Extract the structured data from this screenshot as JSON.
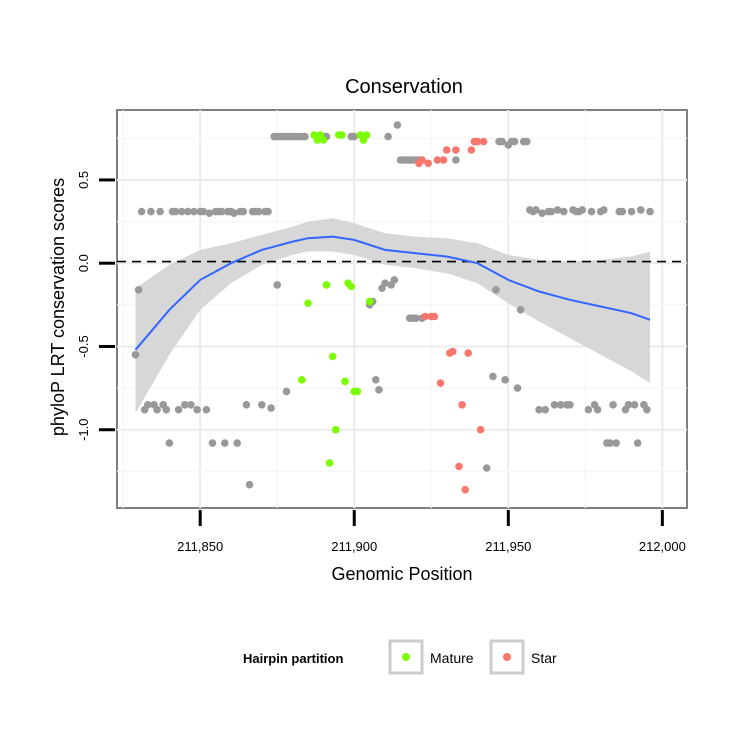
{
  "chart_data": {
    "type": "scatter",
    "title": "Conservation",
    "xlabel": "Genomic Position",
    "ylabel": "phyloP LRT conservation scores",
    "xlim": [
      211823,
      212008
    ],
    "ylim": [
      -1.47,
      0.92
    ],
    "x_ticks": [
      211850,
      211900,
      211950,
      212000
    ],
    "x_tick_labels": [
      "211,850",
      "211,900",
      "211,950",
      "212,000"
    ],
    "y_ticks": [
      0.5,
      0.0,
      -0.5,
      -1.0
    ],
    "y_tick_labels": [
      "0.5",
      "0.0",
      "-0.5",
      "-1.0"
    ],
    "reference_line": {
      "y": 0.01,
      "style": "dashed"
    },
    "grid": true,
    "legend": {
      "title": "Hairpin partition",
      "position": "bottom",
      "entries": [
        {
          "label": "Mature",
          "color": "#7CFC00"
        },
        {
          "label": "Star",
          "color": "#F8766D"
        }
      ]
    },
    "colors": {
      "other": "#999999",
      "mature": "#7CFC00",
      "star": "#F8766D",
      "smooth": "#3366FF",
      "band": "#d3d3d3"
    },
    "series": [
      {
        "name": "Other",
        "points": [
          [
            211829,
            -0.55
          ],
          [
            211830,
            -0.16
          ],
          [
            211831,
            0.31
          ],
          [
            211832,
            -0.88
          ],
          [
            211833,
            -0.85
          ],
          [
            211834,
            0.31
          ],
          [
            211835,
            -0.85
          ],
          [
            211836,
            -0.88
          ],
          [
            211837,
            0.31
          ],
          [
            211838,
            -0.85
          ],
          [
            211839,
            -0.88
          ],
          [
            211840,
            -1.08
          ],
          [
            211841,
            0.31
          ],
          [
            211842,
            0.31
          ],
          [
            211843,
            -0.88
          ],
          [
            211844,
            0.31
          ],
          [
            211845,
            -0.85
          ],
          [
            211846,
            0.31
          ],
          [
            211847,
            -0.85
          ],
          [
            211848,
            0.31
          ],
          [
            211849,
            -0.88
          ],
          [
            211850,
            0.31
          ],
          [
            211851,
            0.31
          ],
          [
            211852,
            -0.88
          ],
          [
            211853,
            0.3
          ],
          [
            211854,
            -1.08
          ],
          [
            211855,
            0.31
          ],
          [
            211856,
            0.31
          ],
          [
            211857,
            0.31
          ],
          [
            211858,
            -1.08
          ],
          [
            211859,
            0.31
          ],
          [
            211860,
            0.31
          ],
          [
            211861,
            0.3
          ],
          [
            211862,
            -1.08
          ],
          [
            211863,
            0.31
          ],
          [
            211864,
            0.31
          ],
          [
            211865,
            -0.85
          ],
          [
            211866,
            -1.33
          ],
          [
            211867,
            0.31
          ],
          [
            211868,
            0.31
          ],
          [
            211869,
            0.31
          ],
          [
            211870,
            -0.85
          ],
          [
            211871,
            0.31
          ],
          [
            211872,
            0.31
          ],
          [
            211873,
            -0.87
          ],
          [
            211874,
            0.76
          ],
          [
            211875,
            0.76
          ],
          [
            211876,
            0.76
          ],
          [
            211877,
            0.76
          ],
          [
            211878,
            0.76
          ],
          [
            211879,
            0.76
          ],
          [
            211880,
            0.76
          ],
          [
            211881,
            0.76
          ],
          [
            211882,
            0.76
          ],
          [
            211883,
            0.76
          ],
          [
            211884,
            0.76
          ],
          [
            211875,
            -0.13
          ],
          [
            211878,
            -0.77
          ],
          [
            211889,
            0.76
          ],
          [
            211890,
            0.76
          ],
          [
            211891,
            0.76
          ],
          [
            211899,
            0.76
          ],
          [
            211900,
            0.76
          ],
          [
            211905,
            -0.25
          ],
          [
            211906,
            -0.23
          ],
          [
            211907,
            -0.7
          ],
          [
            211908,
            -0.76
          ],
          [
            211909,
            -0.15
          ],
          [
            211910,
            -0.12
          ],
          [
            211911,
            0.76
          ],
          [
            211912,
            -0.13
          ],
          [
            211913,
            -0.1
          ],
          [
            211914,
            0.83
          ],
          [
            211915,
            0.62
          ],
          [
            211916,
            0.62
          ],
          [
            211917,
            0.62
          ],
          [
            211918,
            0.62
          ],
          [
            211919,
            0.62
          ],
          [
            211920,
            0.62
          ],
          [
            211921,
            0.62
          ],
          [
            211922,
            0.62
          ],
          [
            211918,
            -0.33
          ],
          [
            211919,
            -0.33
          ],
          [
            211920,
            -0.33
          ],
          [
            211922,
            -0.33
          ],
          [
            211933,
            0.62
          ],
          [
            211943,
            -1.23
          ],
          [
            211945,
            -0.68
          ],
          [
            211946,
            -0.16
          ],
          [
            211947,
            0.73
          ],
          [
            211948,
            0.73
          ],
          [
            211949,
            -0.7
          ],
          [
            211950,
            0.71
          ],
          [
            211951,
            0.73
          ],
          [
            211952,
            0.73
          ],
          [
            211953,
            -0.75
          ],
          [
            211954,
            -0.28
          ],
          [
            211955,
            0.73
          ],
          [
            211956,
            0.73
          ],
          [
            211957,
            0.32
          ],
          [
            211958,
            0.31
          ],
          [
            211959,
            0.32
          ],
          [
            211960,
            -0.88
          ],
          [
            211961,
            0.3
          ],
          [
            211962,
            -0.88
          ],
          [
            211963,
            0.31
          ],
          [
            211964,
            0.31
          ],
          [
            211965,
            -0.85
          ],
          [
            211966,
            0.32
          ],
          [
            211967,
            -0.85
          ],
          [
            211968,
            0.31
          ],
          [
            211969,
            -0.85
          ],
          [
            211970,
            -0.85
          ],
          [
            211971,
            0.32
          ],
          [
            211972,
            0.31
          ],
          [
            211973,
            0.31
          ],
          [
            211974,
            0.32
          ],
          [
            211976,
            -0.88
          ],
          [
            211977,
            0.31
          ],
          [
            211978,
            -0.85
          ],
          [
            211979,
            -0.88
          ],
          [
            211980,
            0.31
          ],
          [
            211981,
            0.32
          ],
          [
            211982,
            -1.08
          ],
          [
            211983,
            -1.08
          ],
          [
            211984,
            -0.85
          ],
          [
            211985,
            -1.08
          ],
          [
            211986,
            0.31
          ],
          [
            211987,
            0.31
          ],
          [
            211988,
            -0.88
          ],
          [
            211989,
            -0.85
          ],
          [
            211990,
            0.31
          ],
          [
            211991,
            -0.85
          ],
          [
            211992,
            -1.08
          ],
          [
            211993,
            0.32
          ],
          [
            211994,
            -0.85
          ],
          [
            211995,
            -0.88
          ],
          [
            211996,
            0.31
          ]
        ]
      },
      {
        "name": "Mature",
        "points": [
          [
            211883,
            -0.7
          ],
          [
            211885,
            -0.24
          ],
          [
            211887,
            0.77
          ],
          [
            211888,
            0.74
          ],
          [
            211889,
            0.77
          ],
          [
            211890,
            0.74
          ],
          [
            211891,
            -0.13
          ],
          [
            211892,
            -1.2
          ],
          [
            211893,
            -0.56
          ],
          [
            211894,
            -1.0
          ],
          [
            211895,
            0.77
          ],
          [
            211896,
            0.77
          ],
          [
            211897,
            -0.71
          ],
          [
            211898,
            -0.12
          ],
          [
            211899,
            -0.14
          ],
          [
            211900,
            -0.77
          ],
          [
            211901,
            -0.77
          ],
          [
            211902,
            0.77
          ],
          [
            211903,
            0.74
          ],
          [
            211904,
            0.77
          ],
          [
            211905,
            -0.23
          ]
        ]
      },
      {
        "name": "Star",
        "points": [
          [
            211921,
            0.6
          ],
          [
            211922,
            0.62
          ],
          [
            211923,
            -0.32
          ],
          [
            211924,
            0.6
          ],
          [
            211925,
            -0.32
          ],
          [
            211926,
            -0.32
          ],
          [
            211927,
            0.62
          ],
          [
            211928,
            -0.72
          ],
          [
            211929,
            0.62
          ],
          [
            211930,
            0.68
          ],
          [
            211931,
            -0.54
          ],
          [
            211932,
            -0.53
          ],
          [
            211933,
            0.68
          ],
          [
            211934,
            -1.22
          ],
          [
            211935,
            -0.85
          ],
          [
            211936,
            -1.36
          ],
          [
            211937,
            -0.54
          ],
          [
            211938,
            0.68
          ],
          [
            211939,
            0.73
          ],
          [
            211940,
            0.73
          ],
          [
            211941,
            -1.0
          ],
          [
            211942,
            0.73
          ]
        ]
      }
    ],
    "smooth": {
      "x": [
        211829,
        211840,
        211850,
        211860,
        211870,
        211880,
        211885,
        211893,
        211900,
        211910,
        211920,
        211930,
        211940,
        211950,
        211960,
        211970,
        211980,
        211990,
        211996
      ],
      "y": [
        -0.52,
        -0.28,
        -0.1,
        0.0,
        0.08,
        0.13,
        0.15,
        0.16,
        0.14,
        0.08,
        0.06,
        0.04,
        0.0,
        -0.1,
        -0.17,
        -0.22,
        -0.26,
        -0.3,
        -0.34
      ],
      "lower": [
        -0.9,
        -0.55,
        -0.28,
        -0.12,
        -0.01,
        0.05,
        0.07,
        0.07,
        0.05,
        -0.01,
        -0.03,
        -0.06,
        -0.12,
        -0.24,
        -0.35,
        -0.45,
        -0.55,
        -0.65,
        -0.72
      ],
      "upper": [
        -0.15,
        -0.01,
        0.08,
        0.12,
        0.17,
        0.22,
        0.25,
        0.27,
        0.24,
        0.18,
        0.16,
        0.15,
        0.12,
        0.05,
        0.02,
        0.01,
        0.02,
        0.04,
        0.07
      ]
    }
  }
}
